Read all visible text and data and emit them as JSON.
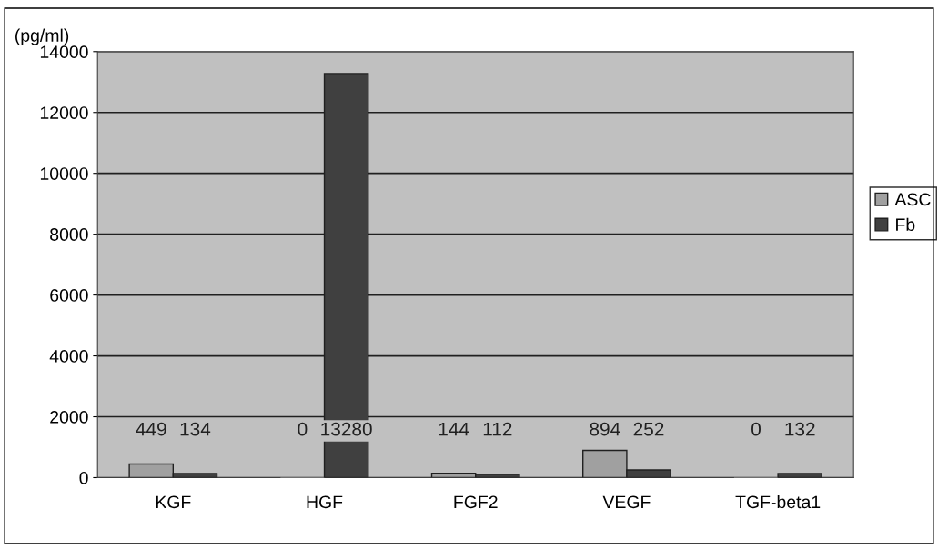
{
  "chart_data": {
    "type": "bar",
    "ylabel": "(pg/ml)",
    "categories": [
      "KGF",
      "HGF",
      "FGF2",
      "VEGF",
      "TGF-beta1"
    ],
    "series": [
      {
        "name": "ASC",
        "color": "#a0a0a0",
        "values": [
          449,
          0,
          144,
          894,
          0
        ]
      },
      {
        "name": "Fb",
        "color": "#404040",
        "values": [
          134,
          13280,
          112,
          252,
          132
        ]
      }
    ],
    "ylim": [
      0,
      14000
    ],
    "yticks": [
      0,
      2000,
      4000,
      6000,
      8000,
      10000,
      12000,
      14000
    ],
    "grid": "y",
    "legend": "right",
    "data_labels": true
  }
}
